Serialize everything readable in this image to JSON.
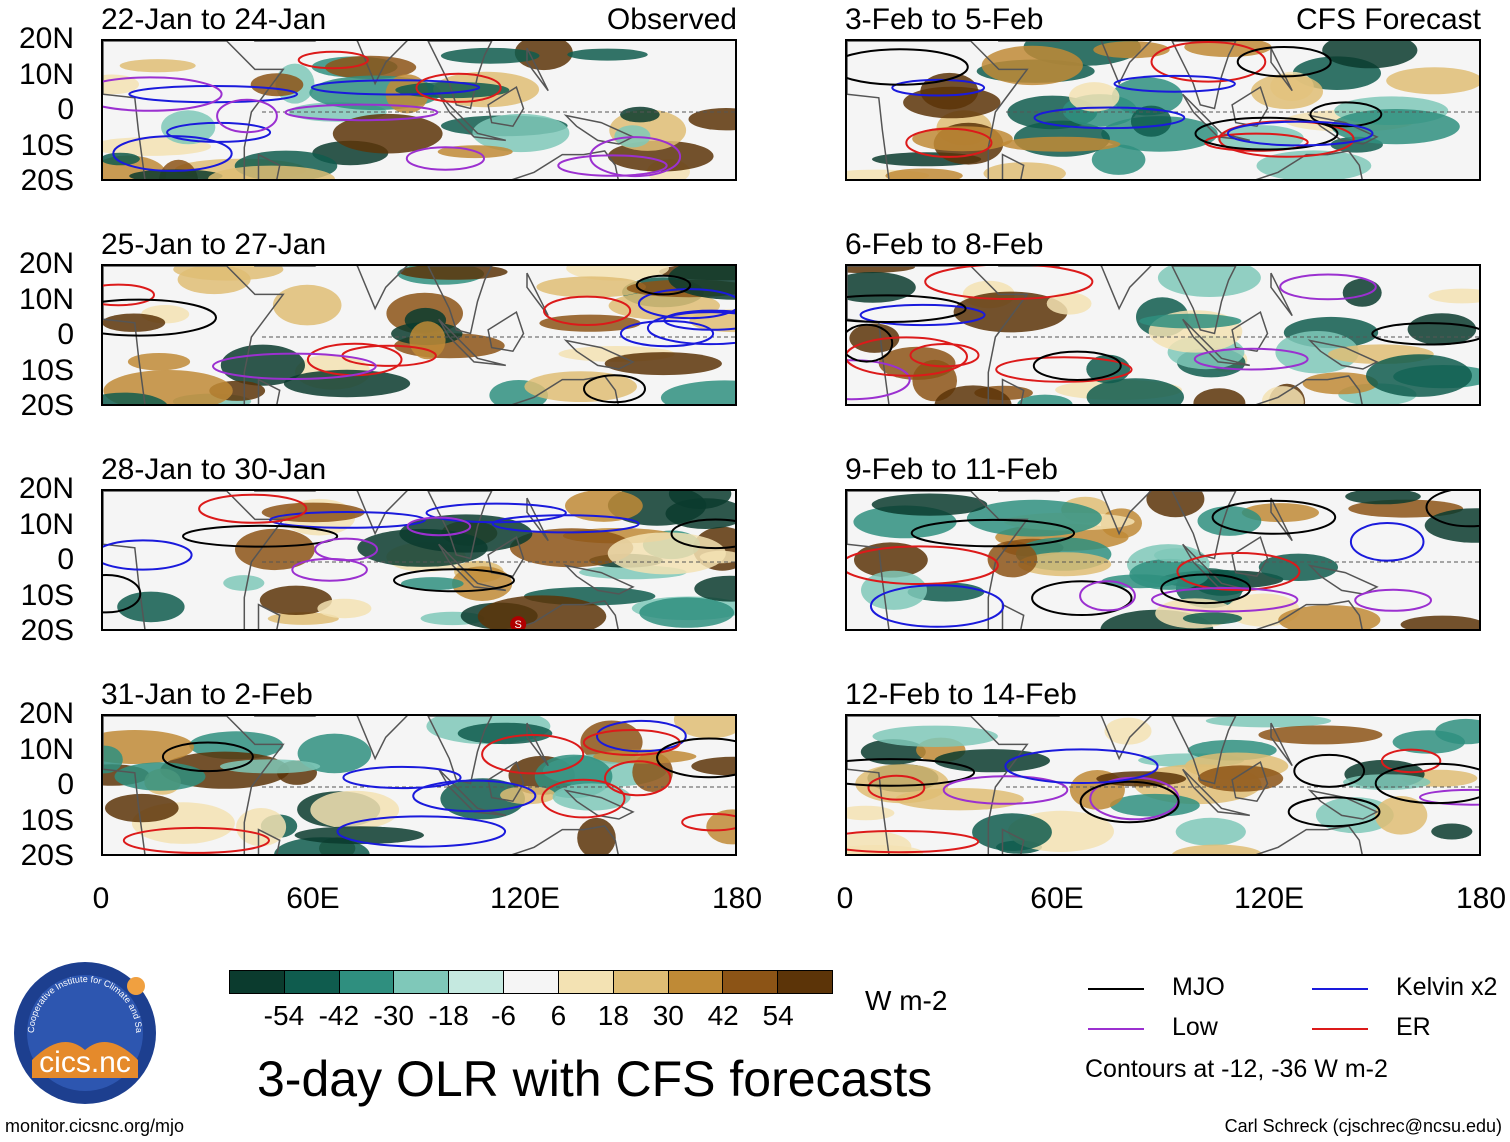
{
  "map_panels": [
    {
      "title": "22-Jan to 24-Jan",
      "label": "Observed"
    },
    {
      "title": "3-Feb to 5-Feb",
      "label": "CFS Forecast"
    },
    {
      "title": "25-Jan to 27-Jan",
      "label": ""
    },
    {
      "title": "6-Feb to 8-Feb",
      "label": ""
    },
    {
      "title": "28-Jan to 30-Jan",
      "label": ""
    },
    {
      "title": "9-Feb to 11-Feb",
      "label": ""
    },
    {
      "title": "31-Jan to 2-Feb",
      "label": ""
    },
    {
      "title": "12-Feb to 14-Feb",
      "label": ""
    }
  ],
  "axes": {
    "lat_ticks": [
      "20N",
      "10N",
      "0",
      "10S",
      "20S"
    ],
    "lon_ticks": [
      "0",
      "60E",
      "120E",
      "180"
    ]
  },
  "colorbar": {
    "labels": [
      "-54",
      "-42",
      "-30",
      "-18",
      "-6",
      "6",
      "18",
      "30",
      "42",
      "54"
    ],
    "colors": [
      "#0b3b2e",
      "#0f5c4e",
      "#2f8f7f",
      "#7fc8b9",
      "#c5e9e0",
      "#f5f5f5",
      "#f3e2b3",
      "#dfbd74",
      "#bf8a36",
      "#8c5416",
      "#5c3408"
    ],
    "units": "W m-2"
  },
  "title": "3-day OLR with CFS forecasts",
  "legend": {
    "items": [
      {
        "label": "MJO",
        "color": "#000000"
      },
      {
        "label": "Kelvin x2",
        "color": "#1a1adc"
      },
      {
        "label": "Low",
        "color": "#9b30d0"
      },
      {
        "label": "ER",
        "color": "#dc1a1a"
      }
    ],
    "note": "Contours at -12, -36 W m-2"
  },
  "logo_text": "cics.nc",
  "logo_ring_text": "Cooperative Institute for Climate and Satellites",
  "footer_left": "monitor.cicsnc.org/mjo",
  "footer_right": "Carl Schreck (cjschrec@ncsu.edu)",
  "storm_marker": "S"
}
